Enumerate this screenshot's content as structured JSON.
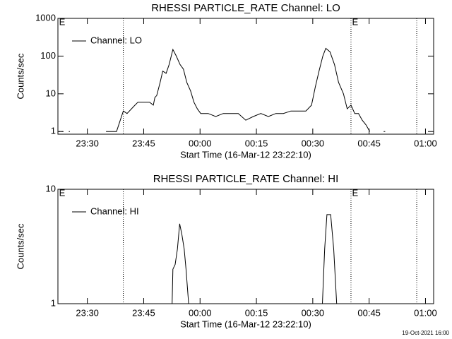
{
  "chart_data": [
    {
      "type": "line",
      "title": "RHESSI PARTICLE_RATE Channel: LO",
      "xlabel": "Start Time (16-Mar-12 23:22:10)",
      "ylabel": "Counts/sec",
      "x": [
        0.2,
        0.6,
        0.8,
        1.0,
        1.3,
        1.5,
        2.9,
        3.2,
        3.4,
        12.8,
        15.6,
        16.6,
        17.4,
        18.4,
        20.5,
        21.3,
        24.4,
        25.4,
        25.8,
        26.3,
        27.2,
        27.9,
        28.8,
        29.6,
        30.6,
        31.5,
        32.5,
        33.4,
        34.3,
        35.3,
        36.2,
        37.1,
        38,
        40,
        42,
        44,
        46,
        48,
        50,
        52,
        54,
        56,
        58,
        60,
        62,
        64,
        66,
        67.5,
        68.5,
        69.5,
        70.5,
        71.3,
        72.4,
        73.6,
        74.7,
        76,
        77,
        78,
        79,
        80,
        81,
        82,
        83,
        83.5,
        86.7,
        87.1
      ],
      "series": [
        {
          "name": "Channel: LO",
          "color": "#000000",
          "values": [
            1,
            1,
            null,
            1,
            1,
            null,
            1,
            1,
            null,
            1,
            1,
            2,
            3.5,
            3,
            5,
            6,
            6,
            5,
            8,
            9,
            20,
            40,
            35,
            60,
            150,
            100,
            60,
            45,
            20,
            12,
            6,
            4,
            3,
            3,
            2.5,
            3,
            3,
            3,
            2,
            2.5,
            3,
            2.5,
            3,
            3,
            3.5,
            3.5,
            3.5,
            5,
            15,
            40,
            100,
            160,
            130,
            60,
            20,
            10,
            4,
            5,
            3,
            3,
            2,
            1.5,
            1,
            null,
            1,
            1
          ]
        }
      ],
      "xlim": [
        0,
        100
      ],
      "ylim": [
        0.85,
        1000
      ],
      "log_y": true,
      "xticks": [
        {
          "value": 7.83,
          "label": "23:30"
        },
        {
          "value": 22.83,
          "label": "23:45"
        },
        {
          "value": 37.83,
          "label": "00:00"
        },
        {
          "value": 52.83,
          "label": "00:15"
        },
        {
          "value": 67.83,
          "label": "00:30"
        },
        {
          "value": 82.83,
          "label": "00:45"
        },
        {
          "value": 97.83,
          "label": "01:00"
        }
      ],
      "yticks": [
        1,
        10,
        100,
        1000
      ],
      "legend": "upper left",
      "vlines": [
        17.4,
        78,
        95.5
      ],
      "annotations": [
        {
          "text": "E",
          "x": 0.3
        },
        {
          "text": "E",
          "x": 78.3
        }
      ]
    },
    {
      "type": "line",
      "title": "RHESSI PARTICLE_RATE Channel: HI",
      "xlabel": "Start Time (16-Mar-12 23:22:10)",
      "ylabel": "Counts/sec",
      "x": [
        30.4,
        30.6,
        31.2,
        31.8,
        32.4,
        33,
        33.6,
        34.1,
        34.8,
        35,
        70.4,
        71,
        71.6,
        72.6,
        73.4,
        74.2
      ],
      "series": [
        {
          "name": "Channel: HI",
          "color": "#000000",
          "values": [
            1,
            2,
            2.2,
            3,
            5,
            4,
            3,
            2,
            1,
            null,
            1,
            3,
            6,
            6,
            3,
            1
          ]
        }
      ],
      "xlim": [
        0,
        100
      ],
      "ylim": [
        1,
        10
      ],
      "log_y": true,
      "xticks": [
        {
          "value": 7.83,
          "label": "23:30"
        },
        {
          "value": 22.83,
          "label": "23:45"
        },
        {
          "value": 37.83,
          "label": "00:00"
        },
        {
          "value": 52.83,
          "label": "00:15"
        },
        {
          "value": 67.83,
          "label": "00:30"
        },
        {
          "value": 82.83,
          "label": "00:45"
        },
        {
          "value": 97.83,
          "label": "01:00"
        }
      ],
      "yticks": [
        1,
        10
      ],
      "legend": "upper left",
      "vlines": [
        17.4,
        78,
        95.5
      ],
      "annotations": [
        {
          "text": "E",
          "x": 0.3
        },
        {
          "text": "E",
          "x": 78.3
        }
      ]
    }
  ],
  "footer": "19-Oct-2021 16:00"
}
